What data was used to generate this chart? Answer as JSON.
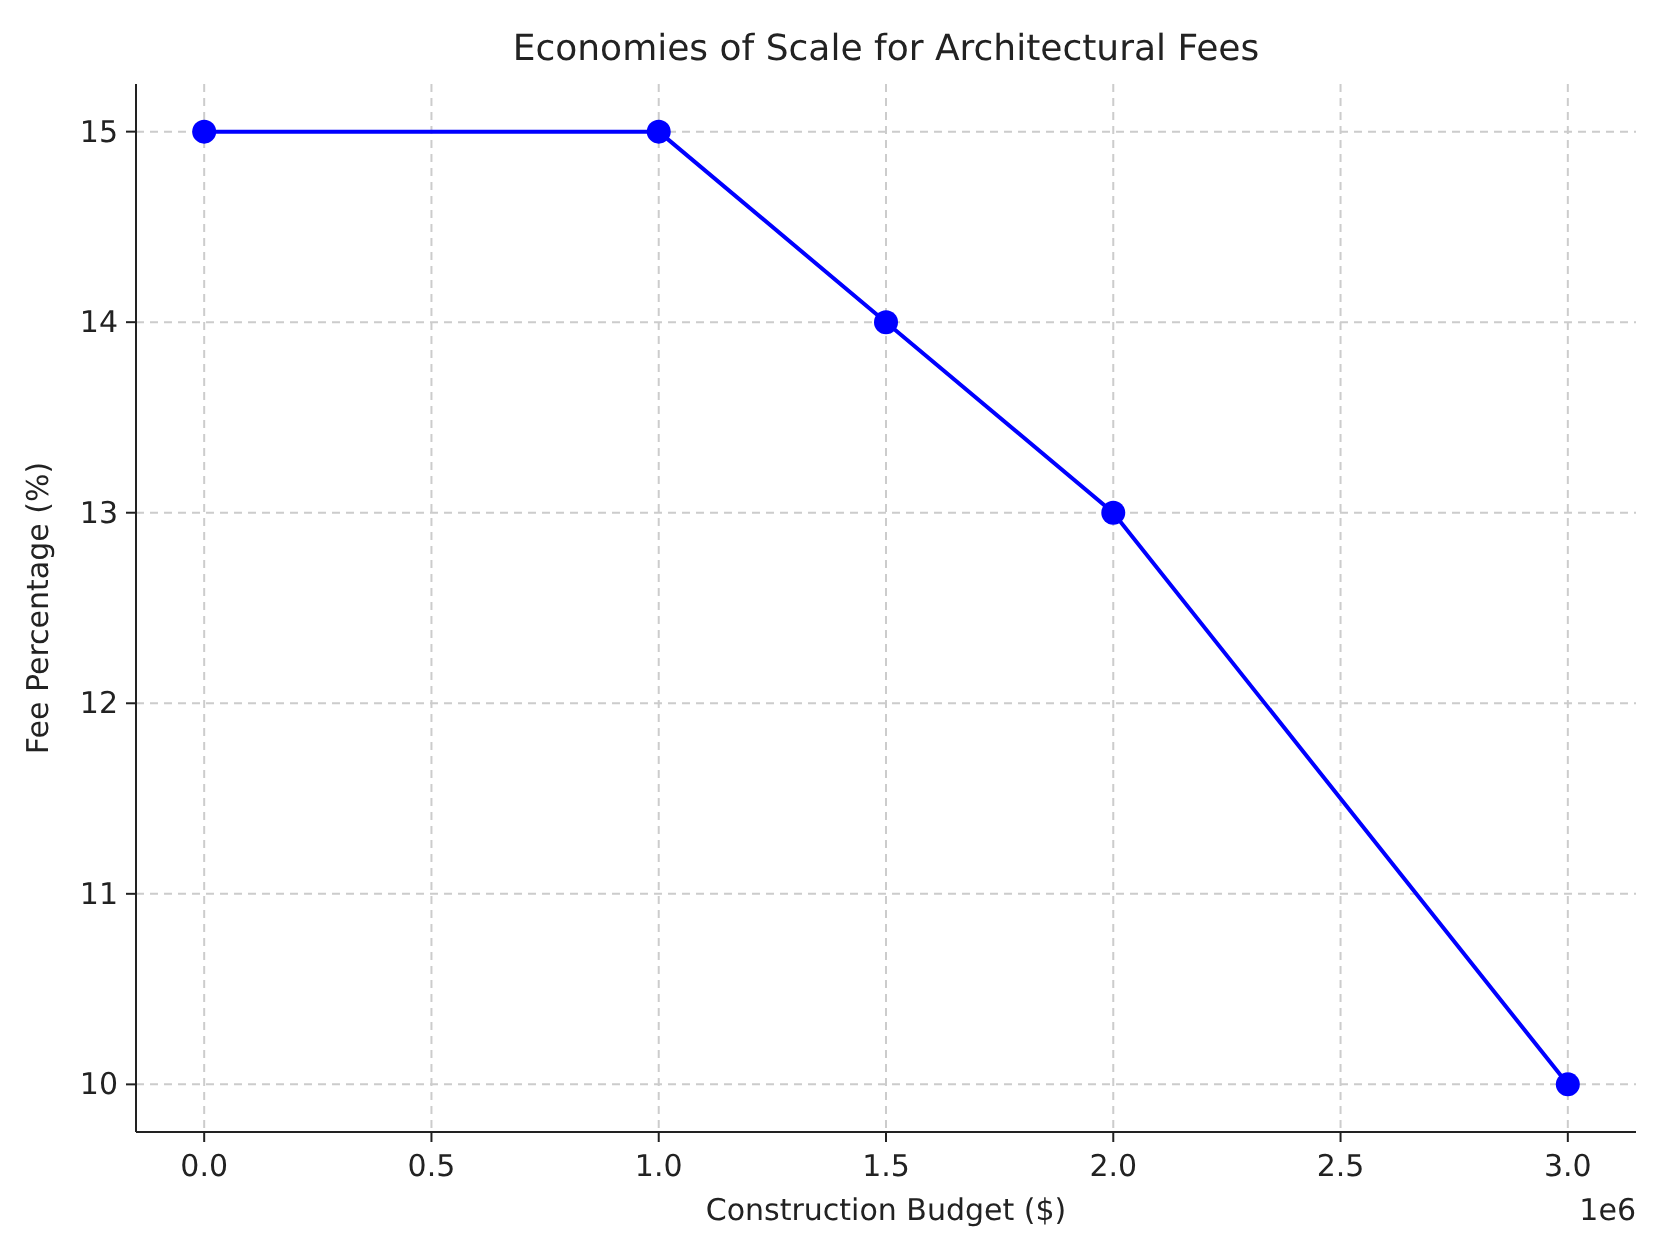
{
  "chart_data": {
    "type": "line",
    "title": "Economies of Scale for Architectural Fees",
    "xlabel": "Construction Budget ($)",
    "ylabel": "Fee Percentage (%)",
    "x": [
      0,
      1,
      1.5,
      2,
      3
    ],
    "series": [
      {
        "color": "#0000ff",
        "values": [
          15,
          15,
          14,
          13,
          10
        ]
      }
    ],
    "xlim": [
      -0.15,
      3.15
    ],
    "xticks": [
      {
        "value": 0,
        "label": "0.0"
      },
      {
        "value": 0.5,
        "label": "0.5"
      },
      {
        "value": 1,
        "label": "1.0"
      },
      {
        "value": 1.5,
        "label": "1.5"
      },
      {
        "value": 2,
        "label": "2.0"
      },
      {
        "value": 2.5,
        "label": "2.5"
      },
      {
        "value": 3,
        "label": "3.0"
      }
    ],
    "ylim": [
      9.75,
      15.25
    ],
    "yticks": [
      10,
      11,
      12,
      13,
      14,
      15
    ],
    "annotations": [
      "1e6"
    ],
    "grid": true,
    "marker": "circle",
    "line_style": "solid"
  }
}
